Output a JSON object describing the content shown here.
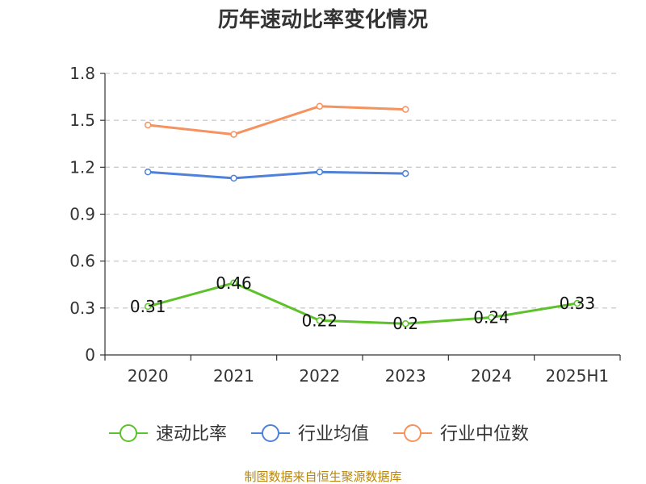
{
  "chart_data": {
    "type": "line",
    "title": "历年速动比率变化情况",
    "categories": [
      "2020",
      "2021",
      "2022",
      "2023",
      "2024",
      "2025H1"
    ],
    "ylim": [
      0,
      1.8
    ],
    "yticks": [
      "0",
      "0.3",
      "0.6",
      "0.9",
      "1.2",
      "1.5",
      "1.8"
    ],
    "grid": true,
    "legend_position": "bottom",
    "series": [
      {
        "name": "速动比率",
        "color": "#5cc12b",
        "values": [
          0.31,
          0.46,
          0.22,
          0.2,
          0.24,
          0.33
        ],
        "labels": [
          "0.31",
          "0.46",
          "0.22",
          "0.2",
          "0.24",
          "0.33"
        ],
        "show_labels": true
      },
      {
        "name": "行业均值",
        "color": "#4f81d9",
        "values": [
          1.17,
          1.13,
          1.17,
          1.16,
          null,
          null
        ],
        "show_labels": false
      },
      {
        "name": "行业中位数",
        "color": "#f5925e",
        "values": [
          1.47,
          1.41,
          1.59,
          1.57,
          null,
          null
        ],
        "show_labels": false
      }
    ]
  },
  "footer": {
    "source": "制图数据来自恒生聚源数据库"
  }
}
